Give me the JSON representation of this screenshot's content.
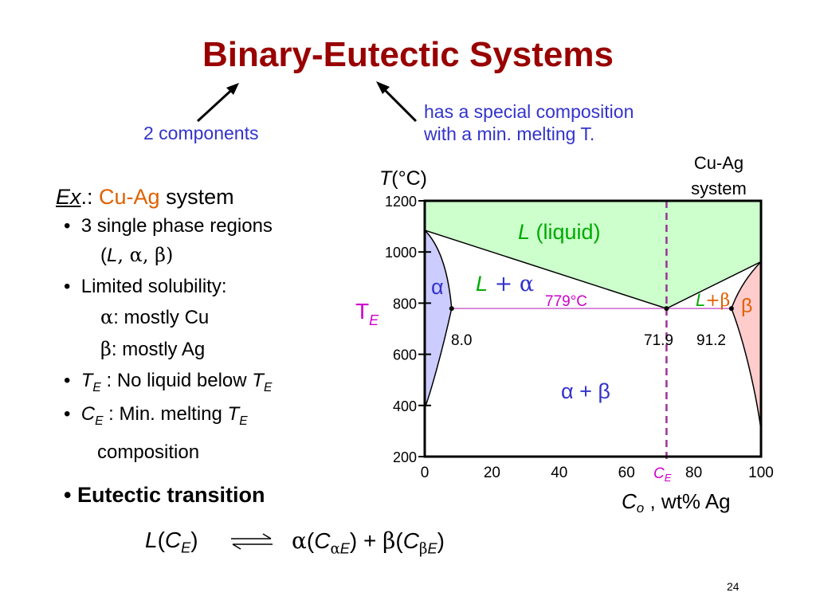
{
  "slide": {
    "title": "Binary-Eutectic Systems",
    "page_number": "24"
  },
  "annotations": {
    "components": "2 components",
    "special_line1": "has a special composition",
    "special_line2": "with a min. melting T."
  },
  "example": {
    "prefix": "Ex",
    "punct": ".:",
    "system": "Cu-Ag",
    "suffix": "system"
  },
  "bullets": {
    "b1_line1": "3 single phase regions",
    "b1_line2_open": "(",
    "b1_L": "L",
    "b1_sep": ", α, β)",
    "b2_line1": "Limited solubility:",
    "b2_alpha_sym": "α",
    "b2_alpha_text": ":  mostly Cu",
    "b2_beta_sym": "β",
    "b2_beta_text": ":  mostly Ag",
    "b3_T": "T",
    "b3_sub": "E",
    "b3_text": " :  No liquid below ",
    "b3_T2": "T",
    "b3_sub2": "E",
    "b4_C": "C",
    "b4_sub": "E",
    "b4_text": " :  Min. melting ",
    "b4_T": "T",
    "b4_sub2": "E",
    "b4_line2": "composition",
    "b5": "Eutectic transition"
  },
  "reaction": {
    "L": "L",
    "open": "(",
    "C": "C",
    "sub_E": "E",
    "close": ")",
    "alpha": "α",
    "C_alpha": "C",
    "sub_alpha": "α",
    "sub_alpha_E": "E",
    "plus": " + ",
    "beta": "β",
    "C_beta": "C",
    "sub_beta": "β",
    "sub_beta_E": "E"
  },
  "chart_data": {
    "type": "phase-diagram",
    "title_lines": [
      "Cu-Ag",
      "system"
    ],
    "ylabel_T": "T",
    "ylabel_unit": "(°C)",
    "xlabel_C": "C",
    "xlabel_sub": "o",
    "xlabel_unit": " , wt% Ag",
    "xlim": [
      0,
      100
    ],
    "ylim": [
      200,
      1200
    ],
    "x_ticks": [
      "0",
      "20",
      "40",
      "60",
      "80",
      "100"
    ],
    "y_ticks": [
      "200",
      "400",
      "600",
      "800",
      "1000",
      "1200"
    ],
    "melting_points": {
      "Cu": 1085,
      "Ag": 962
    },
    "eutectic": {
      "T": 779,
      "C": 71.9,
      "alpha_limit": 8.0,
      "beta_limit": 91.2
    },
    "eutectic_label": "779°C",
    "eutectic_composition_labels": [
      "8.0",
      "71.9",
      "91.2"
    ],
    "TE_label": "T",
    "TE_sub": "E",
    "CE_label": "C",
    "CE_sub": "E",
    "regions": {
      "liquid_L": "L",
      "liquid_text": " (liquid)",
      "alpha": "α",
      "L_plus_alpha_L": "L",
      "L_plus_alpha_rest": " + α",
      "L_plus_beta_L": "L",
      "L_plus_beta_rest": "+β",
      "beta": "β",
      "alpha_plus_beta": "α + β"
    },
    "colors": {
      "liquid": "#ccffcc",
      "alpha": "#ccccff",
      "beta": "#ffcccc",
      "eutectic_line": "#cc66cc",
      "ce_line": "#993399",
      "accent_blue": "#3333cc",
      "accent_orange": "#e06000",
      "accent_green": "#00aa00",
      "accent_purple": "#cc00cc",
      "title_red": "#990000"
    }
  }
}
